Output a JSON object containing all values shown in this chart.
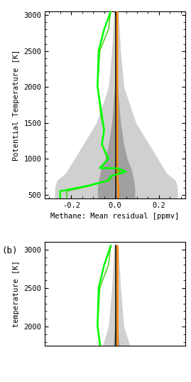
{
  "ylim_a": [
    450,
    3050
  ],
  "xlim_a": [
    -0.32,
    0.32
  ],
  "ylim_b": [
    1750,
    3100
  ],
  "xlim_b": [
    -0.32,
    0.32
  ],
  "yticks_a": [
    500,
    1000,
    1500,
    2000,
    2500,
    3000
  ],
  "yticks_b": [
    2000,
    2500,
    3000
  ],
  "xticks_a": [
    -0.2,
    0.0,
    0.2
  ],
  "xlabel": "Methane: Mean residual [ppmv]",
  "ylabel_a": "Potential Temperature [K]",
  "ylabel_b": "temperature [K]",
  "panel_b_label": "(b)",
  "bg_color": "#ffffff",
  "outer_shade": "#d0d0d0",
  "inner_shade": "#a0a0a0",
  "orange_color": "#ff8800",
  "black_color": "#111111",
  "green_bright": "#00ff00",
  "green_mid": "#33cc00"
}
